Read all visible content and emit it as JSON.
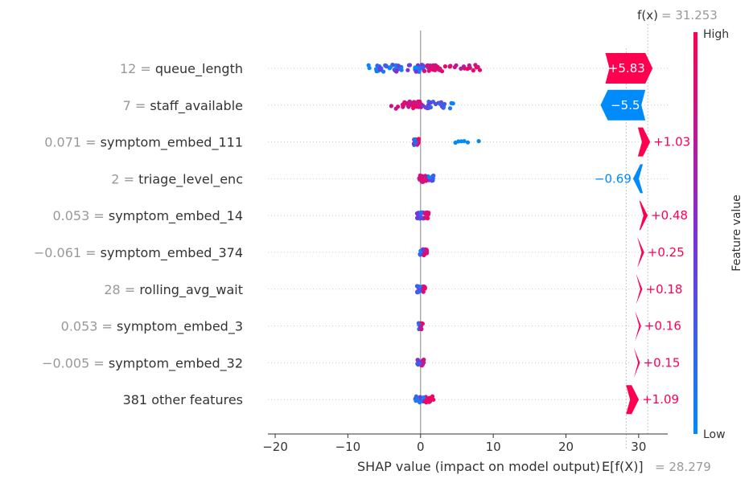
{
  "chart_data": {
    "type": "scatter",
    "subtype": "shap-beeswarm-with-waterfall",
    "xlabel": "SHAP value (impact on model output)",
    "xlim": [
      -21,
      34
    ],
    "xticks": [
      -20,
      -10,
      0,
      10,
      20,
      30
    ],
    "base_value_label": "E[f(X)]",
    "base_value_text": "= 28.279",
    "base_value": 28.279,
    "output_label": "f(x)",
    "output_value_text": "= 31.253",
    "output_value": 31.253,
    "colorbar": {
      "title": "Feature value",
      "high": "High",
      "low": "Low"
    },
    "colors": {
      "positive": "#ff0051",
      "negative": "#008bfb",
      "mid": "#7f2fd9",
      "axis": "#333333",
      "zero_line": "#999999"
    },
    "features": [
      {
        "value_text": "12",
        "name": "queue_length",
        "contribution": 5.83,
        "contribution_label": "+5.83",
        "spread": 19.0,
        "offset": 0.5
      },
      {
        "value_text": "7",
        "name": "staff_available",
        "contribution": -5.5,
        "contribution_label": "−5.5",
        "spread": 8.8,
        "offset": 0.3
      },
      {
        "value_text": "0.071",
        "name": "symptom_embed_111",
        "contribution": 1.03,
        "contribution_label": "+1.03",
        "spread": 0.8,
        "offset": -0.6,
        "outliers": [
          4.8,
          5.2,
          5.6,
          6.0,
          6.5,
          8.0
        ]
      },
      {
        "value_text": "2",
        "name": "triage_level_enc",
        "contribution": -0.69,
        "contribution_label": "−0.69",
        "spread": 2.0,
        "offset": 0.8
      },
      {
        "value_text": "0.053",
        "name": "symptom_embed_14",
        "contribution": 0.48,
        "contribution_label": "+0.48",
        "spread": 2.0,
        "offset": 0.5
      },
      {
        "value_text": "−0.061",
        "name": "symptom_embed_374",
        "contribution": 0.25,
        "contribution_label": "+0.25",
        "spread": 1.0,
        "offset": 0.4
      },
      {
        "value_text": "28",
        "name": "rolling_avg_wait",
        "contribution": 0.18,
        "contribution_label": "+0.18",
        "spread": 1.2,
        "offset": 0.1
      },
      {
        "value_text": "0.053",
        "name": "symptom_embed_3",
        "contribution": 0.16,
        "contribution_label": "+0.16",
        "spread": 0.6,
        "offset": 0.0
      },
      {
        "value_text": "−0.005",
        "name": "symptom_embed_32",
        "contribution": 0.15,
        "contribution_label": "+0.15",
        "spread": 0.9,
        "offset": 0.0
      },
      {
        "value_text": "",
        "name": "381 other features",
        "contribution": 1.09,
        "contribution_label": "+1.09",
        "spread": 2.6,
        "offset": 0.5
      }
    ]
  }
}
